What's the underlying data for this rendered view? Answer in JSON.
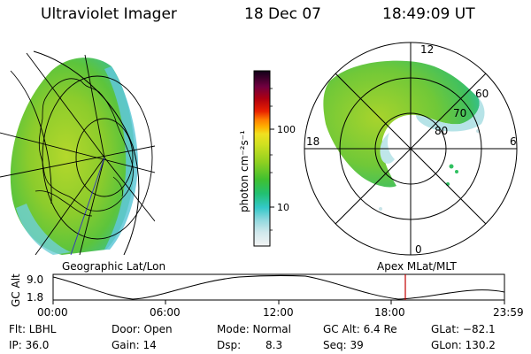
{
  "header": {
    "title": "Ultraviolet Imager",
    "date": "18 Dec 07",
    "time": "18:49:09 UT"
  },
  "colorbar": {
    "unit_label": "photon cm⁻²s⁻¹",
    "ticks": [
      "100",
      "10"
    ]
  },
  "polar_plot": {
    "mlt_labels": [
      "12",
      "18",
      "6",
      "0"
    ],
    "lat_labels": [
      "60",
      "70",
      "80"
    ]
  },
  "map_labels": {
    "left": "Geographic Lat/Lon",
    "right": "Apex MLat/MLT"
  },
  "timeline": {
    "axis_label": "GC Alt",
    "y_max": "9.0",
    "y_min": "1.8",
    "time_ticks": [
      "00:00",
      "06:00",
      "12:00",
      "18:00",
      "23:59"
    ],
    "current_time_marker_color": "#c00000"
  },
  "info": {
    "flt": "Flt: LBHL",
    "ip": "IP: 36.0",
    "door": "Door: Open",
    "gain": "Gain: 14",
    "mode": "Mode: Normal",
    "dsp_label": "Dsp:",
    "dsp_value": "8.3",
    "gc_alt": "GC Alt: 6.4 Re",
    "seq": "Seq: 39",
    "glat": "GLat: −82.1",
    "glon": "GLon: 130.2"
  }
}
